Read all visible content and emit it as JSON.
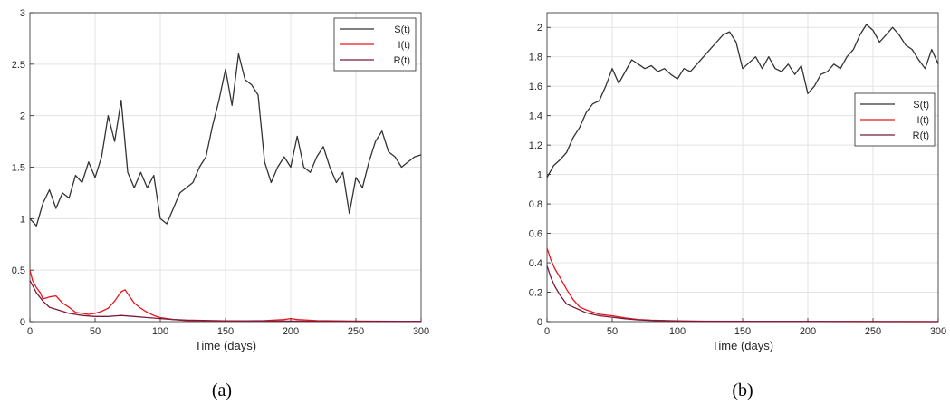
{
  "colors": {
    "S": "#333333",
    "I": "#e8161b",
    "R": "#7a1a3f",
    "grid": "#e3e3e3",
    "axis": "#262626"
  },
  "chart_data": [
    {
      "type": "line",
      "panel_label": "(a)",
      "xlabel": "Time (days)",
      "ylabel": "",
      "xlim": [
        0,
        300
      ],
      "ylim": [
        0,
        3
      ],
      "xticks": [
        0,
        50,
        100,
        150,
        200,
        250,
        300
      ],
      "yticks": [
        0,
        0.5,
        1,
        1.5,
        2,
        2.5,
        3
      ],
      "xtick_labels": [
        "0",
        "50",
        "100",
        "150",
        "200",
        "250",
        "300"
      ],
      "ytick_labels": [
        "0",
        "0.5",
        "1",
        "1.5",
        "2",
        "2.5",
        "3"
      ],
      "grid": true,
      "legend_position": "top-right",
      "series": [
        {
          "name": "S(t)",
          "color": "#333333",
          "x": [
            0,
            5,
            10,
            15,
            20,
            25,
            30,
            35,
            40,
            45,
            50,
            55,
            60,
            65,
            70,
            75,
            80,
            85,
            90,
            95,
            100,
            105,
            110,
            115,
            120,
            125,
            130,
            135,
            140,
            145,
            150,
            155,
            160,
            165,
            170,
            175,
            180,
            185,
            190,
            195,
            200,
            205,
            210,
            215,
            220,
            225,
            230,
            235,
            240,
            245,
            250,
            255,
            260,
            265,
            270,
            275,
            280,
            285,
            290,
            295,
            300
          ],
          "y": [
            1.0,
            0.93,
            1.15,
            1.28,
            1.1,
            1.25,
            1.2,
            1.42,
            1.35,
            1.55,
            1.4,
            1.6,
            2.0,
            1.75,
            2.15,
            1.45,
            1.3,
            1.45,
            1.3,
            1.42,
            1.0,
            0.95,
            1.1,
            1.25,
            1.3,
            1.35,
            1.5,
            1.6,
            1.9,
            2.15,
            2.45,
            2.1,
            2.6,
            2.35,
            2.3,
            2.2,
            1.55,
            1.35,
            1.5,
            1.6,
            1.5,
            1.8,
            1.5,
            1.45,
            1.6,
            1.7,
            1.5,
            1.35,
            1.45,
            1.05,
            1.4,
            1.3,
            1.55,
            1.75,
            1.85,
            1.65,
            1.6,
            1.5,
            1.55,
            1.6,
            1.62
          ]
        },
        {
          "name": "I(t)",
          "color": "#e8161b",
          "x": [
            0,
            2,
            5,
            8,
            10,
            15,
            20,
            25,
            30,
            35,
            40,
            45,
            50,
            55,
            60,
            65,
            70,
            73,
            75,
            80,
            85,
            90,
            95,
            100,
            110,
            120,
            150,
            180,
            195,
            200,
            205,
            220,
            250,
            300
          ],
          "y": [
            0.5,
            0.4,
            0.33,
            0.28,
            0.22,
            0.24,
            0.25,
            0.18,
            0.14,
            0.09,
            0.08,
            0.07,
            0.08,
            0.1,
            0.13,
            0.2,
            0.29,
            0.31,
            0.27,
            0.18,
            0.13,
            0.09,
            0.06,
            0.04,
            0.02,
            0.01,
            0.005,
            0.01,
            0.02,
            0.03,
            0.02,
            0.01,
            0.005,
            0.002
          ]
        },
        {
          "name": "R(t)",
          "color": "#7a1a3f",
          "x": [
            0,
            5,
            10,
            15,
            20,
            25,
            30,
            40,
            50,
            60,
            70,
            80,
            90,
            100,
            110,
            120,
            150,
            200,
            250,
            300
          ],
          "y": [
            0.4,
            0.28,
            0.2,
            0.14,
            0.12,
            0.1,
            0.08,
            0.06,
            0.05,
            0.05,
            0.06,
            0.05,
            0.04,
            0.03,
            0.02,
            0.015,
            0.008,
            0.005,
            0.003,
            0.002
          ]
        }
      ]
    },
    {
      "type": "line",
      "panel_label": "(b)",
      "xlabel": "Time (days)",
      "ylabel": "",
      "xlim": [
        0,
        300
      ],
      "ylim": [
        0,
        2.1
      ],
      "xticks": [
        0,
        50,
        100,
        150,
        200,
        250,
        300
      ],
      "yticks": [
        0,
        0.2,
        0.4,
        0.6,
        0.8,
        1,
        1.2,
        1.4,
        1.6,
        1.8,
        2
      ],
      "xtick_labels": [
        "0",
        "50",
        "100",
        "150",
        "200",
        "250",
        "300"
      ],
      "ytick_labels": [
        "0",
        "0.2",
        "0.4",
        "0.6",
        "0.8",
        "1",
        "1.2",
        "1.4",
        "1.6",
        "1.8",
        "2"
      ],
      "grid": true,
      "legend_position": "middle-right",
      "series": [
        {
          "name": "S(t)",
          "color": "#333333",
          "x": [
            0,
            5,
            10,
            15,
            20,
            25,
            30,
            35,
            40,
            45,
            50,
            55,
            60,
            65,
            70,
            75,
            80,
            85,
            90,
            95,
            100,
            105,
            110,
            115,
            120,
            125,
            130,
            135,
            140,
            145,
            150,
            155,
            160,
            165,
            170,
            175,
            180,
            185,
            190,
            195,
            200,
            205,
            210,
            215,
            220,
            225,
            230,
            235,
            240,
            245,
            250,
            255,
            260,
            265,
            270,
            275,
            280,
            285,
            290,
            295,
            300
          ],
          "y": [
            0.98,
            1.06,
            1.1,
            1.15,
            1.25,
            1.32,
            1.42,
            1.48,
            1.5,
            1.6,
            1.72,
            1.62,
            1.7,
            1.78,
            1.75,
            1.72,
            1.74,
            1.7,
            1.72,
            1.68,
            1.65,
            1.72,
            1.7,
            1.75,
            1.8,
            1.85,
            1.9,
            1.95,
            1.97,
            1.9,
            1.72,
            1.76,
            1.8,
            1.72,
            1.8,
            1.72,
            1.7,
            1.75,
            1.68,
            1.74,
            1.55,
            1.6,
            1.68,
            1.7,
            1.75,
            1.72,
            1.8,
            1.85,
            1.95,
            2.02,
            1.98,
            1.9,
            1.95,
            2.0,
            1.95,
            1.88,
            1.85,
            1.78,
            1.72,
            1.85,
            1.75
          ]
        },
        {
          "name": "I(t)",
          "color": "#e8161b",
          "x": [
            0,
            3,
            6,
            10,
            15,
            20,
            25,
            30,
            40,
            50,
            60,
            70,
            80,
            100,
            120,
            150,
            200,
            250,
            300
          ],
          "y": [
            0.5,
            0.42,
            0.36,
            0.3,
            0.22,
            0.15,
            0.1,
            0.08,
            0.05,
            0.04,
            0.025,
            0.015,
            0.01,
            0.005,
            0.003,
            0.002,
            0.001,
            0.001,
            0.0
          ]
        },
        {
          "name": "R(t)",
          "color": "#7a1a3f",
          "x": [
            0,
            3,
            6,
            10,
            15,
            20,
            25,
            30,
            40,
            50,
            60,
            70,
            80,
            100,
            120,
            150,
            200,
            250,
            300
          ],
          "y": [
            0.38,
            0.3,
            0.24,
            0.18,
            0.12,
            0.1,
            0.08,
            0.06,
            0.04,
            0.03,
            0.02,
            0.012,
            0.008,
            0.004,
            0.002,
            0.001,
            0.001,
            0.0,
            0.0
          ]
        }
      ]
    }
  ]
}
